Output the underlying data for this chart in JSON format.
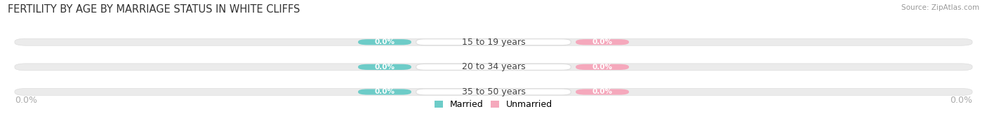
{
  "title": "FERTILITY BY AGE BY MARRIAGE STATUS IN WHITE CLIFFS",
  "source": "Source: ZipAtlas.com",
  "categories": [
    "15 to 19 years",
    "20 to 34 years",
    "35 to 50 years"
  ],
  "married_values": [
    0.0,
    0.0,
    0.0
  ],
  "unmarried_values": [
    0.0,
    0.0,
    0.0
  ],
  "married_color": "#6DCCC8",
  "unmarried_color": "#F5A8BC",
  "bar_bg_color": "#EBEBEB",
  "bar_bg_edge": "#DDDDDD",
  "center_label_bg": "#FFFFFF",
  "legend_married": "Married",
  "legend_unmarried": "Unmarried",
  "title_fontsize": 10.5,
  "label_fontsize": 9,
  "badge_fontsize": 7.5,
  "tick_fontsize": 9,
  "background_color": "#FFFFFF",
  "center_label_color": "#444444",
  "source_color": "#999999"
}
